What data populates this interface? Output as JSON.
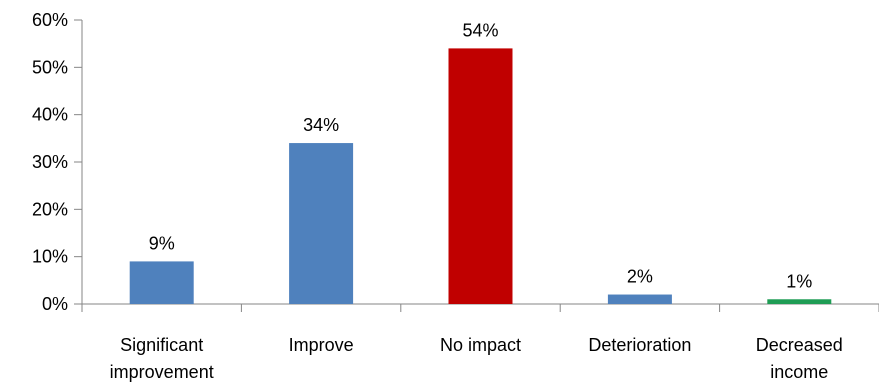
{
  "chart_data": {
    "type": "bar",
    "title": "",
    "xlabel": "",
    "ylabel": "",
    "categories": [
      "Significant improvement",
      "Improve",
      "No impact",
      "Deterioration",
      "Decreased income"
    ],
    "category_label_lines": [
      [
        "Significant",
        "improvement"
      ],
      [
        "Improve"
      ],
      [
        "No impact"
      ],
      [
        "Deterioration"
      ],
      [
        "Decreased",
        "income"
      ]
    ],
    "values": [
      9,
      34,
      54,
      2,
      1
    ],
    "data_labels": [
      "9%",
      "34%",
      "54%",
      "2%",
      "1%"
    ],
    "bar_colors": [
      "#4F81BD",
      "#4F81BD",
      "#C00000",
      "#4F81BD",
      "#1F9D55"
    ],
    "ylim": [
      0,
      60
    ],
    "yticks": [
      0,
      10,
      20,
      30,
      40,
      50,
      60
    ],
    "ytick_labels": [
      "0%",
      "10%",
      "20%",
      "30%",
      "40%",
      "50%",
      "60%"
    ],
    "grid": false,
    "legend": "none"
  }
}
